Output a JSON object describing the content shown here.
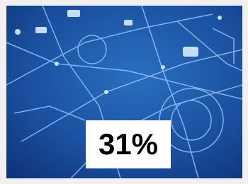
{
  "image": {
    "badge": "31%"
  }
}
